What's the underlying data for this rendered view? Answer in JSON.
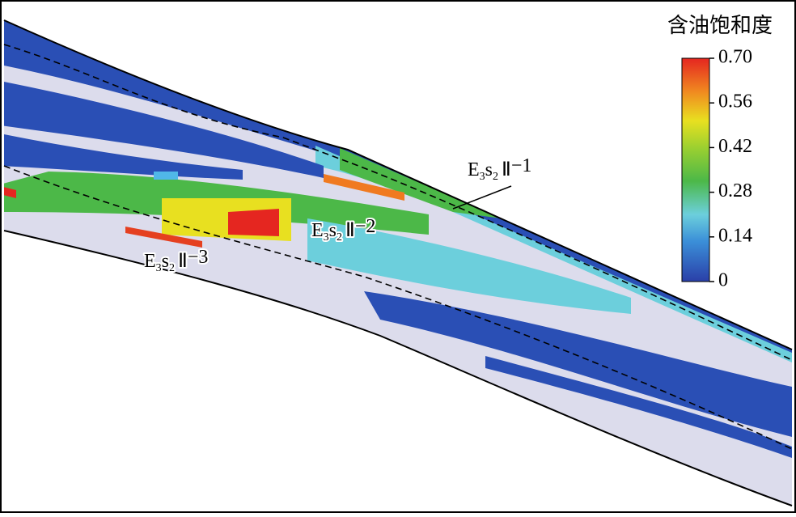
{
  "colorbar": {
    "title": "含油饱和度",
    "range": [
      0,
      0.7
    ],
    "ticks": [
      {
        "value": 0.7,
        "label": "0.70"
      },
      0.56,
      0.42,
      0.28,
      0.14,
      0
    ]
  },
  "labels": [
    {
      "parts": [
        "E",
        "3",
        "s",
        "2",
        "Ⅱ",
        "−1"
      ]
    },
    {
      "parts": [
        "E",
        "3",
        "s",
        "2",
        "Ⅱ",
        "−2"
      ]
    },
    {
      "parts": [
        "E",
        "3",
        "s",
        "2",
        "Ⅱ",
        "−3"
      ]
    }
  ]
}
